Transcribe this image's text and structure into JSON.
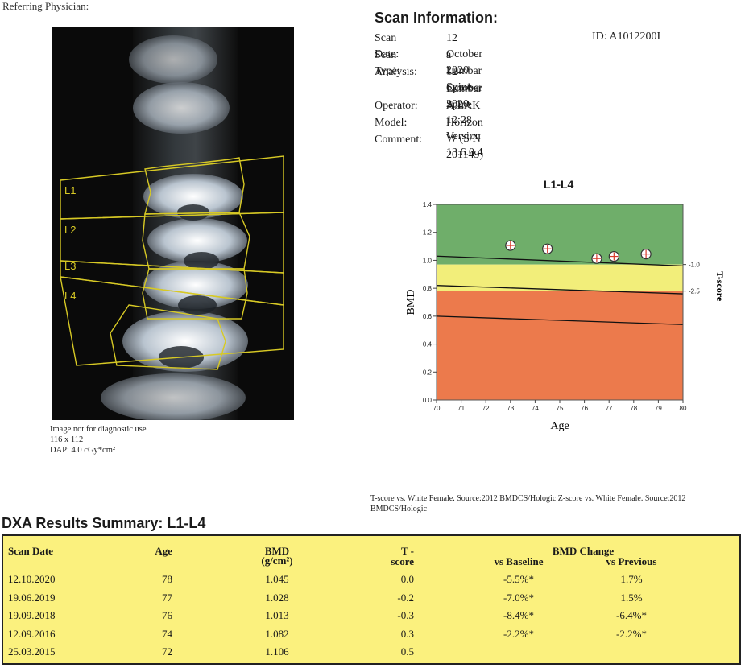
{
  "referring_physician_label": "Referring Physician:",
  "image_caption": [
    "Image not for diagnostic use",
    "116 x 112",
    "DAP: 4.0 cGy*cm²"
  ],
  "vertebra_labels": [
    "L1",
    "L2",
    "L3",
    "L4"
  ],
  "scan_info": {
    "title": "Scan Information:",
    "id_text": "ID:  A1012200I",
    "rows": [
      {
        "label": "Scan Date:",
        "value": "12 October 2020"
      },
      {
        "label": "Scan Type:",
        "value": "a Lumbar Spine"
      },
      {
        "label": "Analysis:",
        "value": "12 October 2020 12:28 Version 13.6.0.4"
      },
      {
        "label": "",
        "value": "Lumbar Spine"
      },
      {
        "label": "Operator:",
        "value": "A.LAK"
      },
      {
        "label": "Model:",
        "value": "Horizon W (S/N 201149)"
      },
      {
        "label": "Comment:",
        "value": ""
      }
    ]
  },
  "chart_data": {
    "type": "scatter",
    "title": "L1-L4",
    "xlabel": "Age",
    "ylabel": "BMD",
    "y2label": "T-score",
    "xlim": [
      70,
      80
    ],
    "ylim": [
      0.0,
      1.4
    ],
    "x_ticks": [
      "70",
      "71",
      "72",
      "73",
      "74",
      "75",
      "76",
      "77",
      "78",
      "79",
      "80"
    ],
    "y_ticks": [
      "0.0",
      "0.2",
      "0.4",
      "0.6",
      "0.8",
      "1.0",
      "1.2",
      "1.4"
    ],
    "y2_ticks": [
      {
        "label": "-1.0",
        "bmd": 0.97
      },
      {
        "label": "-2.5",
        "bmd": 0.78
      }
    ],
    "zones": [
      {
        "name": "normal",
        "color": "#6fae6a",
        "from": 0.97,
        "to": 1.4
      },
      {
        "name": "osteopenia",
        "color": "#f2ee7a",
        "from": 0.78,
        "to": 0.97
      },
      {
        "name": "osteoporosis",
        "color": "#ec7a4c",
        "from": 0.0,
        "to": 0.78
      }
    ],
    "reference_lines": [
      {
        "y_start": 1.03,
        "y_end": 0.96
      },
      {
        "y_start": 0.82,
        "y_end": 0.76
      },
      {
        "y_start": 0.6,
        "y_end": 0.54
      }
    ],
    "points": [
      {
        "x": 73.0,
        "y": 1.106
      },
      {
        "x": 74.5,
        "y": 1.082
      },
      {
        "x": 76.5,
        "y": 1.013
      },
      {
        "x": 77.2,
        "y": 1.028
      },
      {
        "x": 78.5,
        "y": 1.045
      }
    ]
  },
  "source_note": "T-score vs. White Female. Source:2012 BMDCS/Hologic Z-score vs. White Female. Source:2012 BMDCS/Hologic",
  "results": {
    "title": "DXA Results Summary: L1-L4",
    "headers": {
      "scan_date": "Scan Date",
      "age": "Age",
      "bmd": "BMD",
      "bmd_unit": "(g/cm²)",
      "tscore_1": "T -",
      "tscore_2": "score",
      "bmd_change": "BMD Change",
      "vs_baseline": "vs Baseline",
      "vs_previous": "vs Previous"
    },
    "rows": [
      {
        "date": "12.10.2020",
        "age": "78",
        "bmd": "1.045",
        "t": "0.0",
        "base": "-5.5%*",
        "prev": "1.7%"
      },
      {
        "date": "19.06.2019",
        "age": "77",
        "bmd": "1.028",
        "t": "-0.2",
        "base": "-7.0%*",
        "prev": "1.5%"
      },
      {
        "date": "19.09.2018",
        "age": "76",
        "bmd": "1.013",
        "t": "-0.3",
        "base": "-8.4%*",
        "prev": "-6.4%*"
      },
      {
        "date": "12.09.2016",
        "age": "74",
        "bmd": "1.082",
        "t": "0.3",
        "base": "-2.2%*",
        "prev": "-2.2%*"
      },
      {
        "date": "25.03.2015",
        "age": "72",
        "bmd": "1.106",
        "t": "0.5",
        "base": "",
        "prev": ""
      }
    ]
  }
}
